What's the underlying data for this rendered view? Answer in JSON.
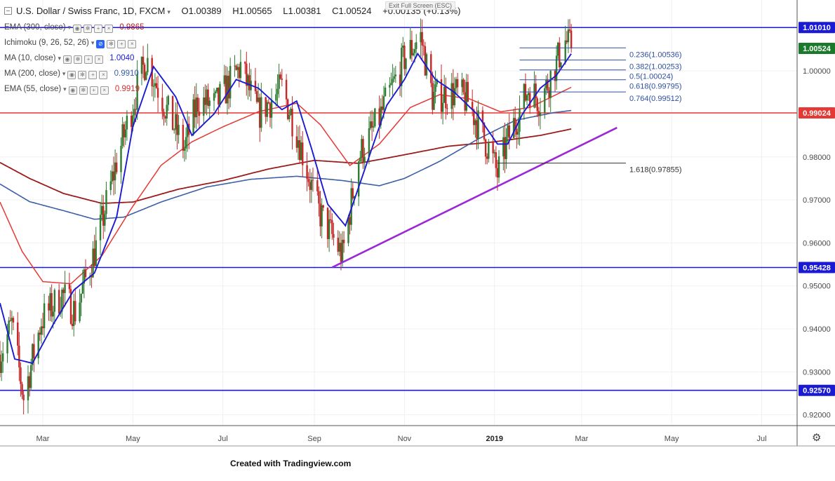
{
  "header": {
    "symbol": "U.S. Dollar / Swiss Franc, 1D, FXCM",
    "open": "O1.00389",
    "high": "H1.00565",
    "low": "L1.00381",
    "close": "C1.00524",
    "change": "+0.00135 (+0.13%)"
  },
  "tooltip": "Exit Full Screen (ESC)",
  "indicators": [
    {
      "name": "EMA (300, close)",
      "value": "0.9865",
      "color": "#b71c1c"
    },
    {
      "name": "Ichimoku (9, 26, 52, 26)",
      "value": "",
      "color": "#2962ff"
    },
    {
      "name": "MA (10, close)",
      "value": "1.0040",
      "color": "#1a1ad4"
    },
    {
      "name": "MA (200, close)",
      "value": "0.9910",
      "color": "#3c5fa6"
    },
    {
      "name": "EMA (55, close)",
      "value": "0.9919",
      "color": "#d32f2f"
    }
  ],
  "footer": "Created with Tradingview.com",
  "colors": {
    "up": "#2e7d32",
    "down": "#c62828",
    "ma10": "#1a1ad4",
    "ema55": "#e53935",
    "ma200": "#3c5fa6",
    "ema300": "#9b1b1b",
    "trendline": "#9c27d8",
    "blue_level": "#1a1ad4",
    "red_level": "#e53935",
    "fib": "#2e4fa3"
  },
  "chart_data": {
    "type": "candlestick",
    "symbol": "USDCHF",
    "timeframe": "1D",
    "ylim": [
      0.9175,
      1.0165
    ],
    "y_ticks": [
      "1.01000",
      "1.00000",
      "0.99000",
      "0.98000",
      "0.97000",
      "0.96000",
      "0.95000",
      "0.94000",
      "0.93000",
      "0.92000"
    ],
    "x_labels": [
      {
        "label": "Mar",
        "date": "2018-03-01"
      },
      {
        "label": "May",
        "date": "2018-05-01"
      },
      {
        "label": "Jul",
        "date": "2018-07-01"
      },
      {
        "label": "Sep",
        "date": "2018-09-01"
      },
      {
        "label": "Nov",
        "date": "2018-11-01"
      },
      {
        "label": "2019",
        "date": "2019-01-01"
      },
      {
        "label": "Mar",
        "date": "2019-03-01"
      },
      {
        "label": "May",
        "date": "2019-05-01"
      },
      {
        "label": "Jul",
        "date": "2019-07-01"
      }
    ],
    "x_range": [
      "2018-01-31",
      "2019-07-25"
    ],
    "price_keypoints": [
      [
        "2018-01-31",
        0.934
      ],
      [
        "2018-02-08",
        0.941
      ],
      [
        "2018-02-16",
        0.924
      ],
      [
        "2018-02-28",
        0.942
      ],
      [
        "2018-03-14",
        0.948
      ],
      [
        "2018-03-23",
        0.944
      ],
      [
        "2018-04-06",
        0.959
      ],
      [
        "2018-04-20",
        0.979
      ],
      [
        "2018-05-10",
        1.003
      ],
      [
        "2018-05-25",
        0.99
      ],
      [
        "2018-06-05",
        0.982
      ],
      [
        "2018-06-14",
        0.993
      ],
      [
        "2018-06-26",
        0.992
      ],
      [
        "2018-07-13",
        1.001
      ],
      [
        "2018-07-25",
        0.99
      ],
      [
        "2018-08-10",
        0.996
      ],
      [
        "2018-08-20",
        0.986
      ],
      [
        "2018-09-03",
        0.968
      ],
      [
        "2018-09-20",
        0.957
      ],
      [
        "2018-10-01",
        0.98
      ],
      [
        "2018-10-15",
        0.989
      ],
      [
        "2018-11-01",
        1.003
      ],
      [
        "2018-11-12",
        1.008
      ],
      [
        "2018-11-20",
        0.994
      ],
      [
        "2018-12-05",
        0.995
      ],
      [
        "2018-12-14",
        0.993
      ],
      [
        "2018-12-28",
        0.982
      ],
      [
        "2019-01-03",
        0.976
      ],
      [
        "2019-01-10",
        0.984
      ],
      [
        "2019-01-24",
        0.996
      ],
      [
        "2019-02-01",
        0.993
      ],
      [
        "2019-02-12",
        1.002
      ],
      [
        "2019-02-18",
        1.007
      ],
      [
        "2019-02-22",
        1.0052
      ]
    ],
    "ma10_keypoints": [
      [
        "2018-01-31",
        0.946
      ],
      [
        "2018-02-10",
        0.933
      ],
      [
        "2018-02-22",
        0.932
      ],
      [
        "2018-03-08",
        0.941
      ],
      [
        "2018-03-22",
        0.949
      ],
      [
        "2018-04-05",
        0.953
      ],
      [
        "2018-04-20",
        0.966
      ],
      [
        "2018-05-01",
        0.987
      ],
      [
        "2018-05-15",
        1.001
      ],
      [
        "2018-05-30",
        0.994
      ],
      [
        "2018-06-10",
        0.985
      ],
      [
        "2018-06-25",
        0.99
      ],
      [
        "2018-07-10",
        0.998
      ],
      [
        "2018-07-25",
        0.996
      ],
      [
        "2018-08-10",
        0.991
      ],
      [
        "2018-08-20",
        0.993
      ],
      [
        "2018-08-30",
        0.982
      ],
      [
        "2018-09-10",
        0.969
      ],
      [
        "2018-09-22",
        0.964
      ],
      [
        "2018-10-05",
        0.977
      ],
      [
        "2018-10-20",
        0.992
      ],
      [
        "2018-11-01",
        0.998
      ],
      [
        "2018-11-10",
        1.004
      ],
      [
        "2018-11-22",
        0.998
      ],
      [
        "2018-12-05",
        0.995
      ],
      [
        "2018-12-20",
        0.99
      ],
      [
        "2019-01-03",
        0.983
      ],
      [
        "2019-01-10",
        0.983
      ],
      [
        "2019-01-20",
        0.99
      ],
      [
        "2019-02-01",
        0.996
      ],
      [
        "2019-02-12",
        0.999
      ],
      [
        "2019-02-22",
        1.004
      ]
    ],
    "ema55_keypoints": [
      [
        "2018-01-31",
        0.9695
      ],
      [
        "2018-02-15",
        0.958
      ],
      [
        "2018-03-01",
        0.951
      ],
      [
        "2018-03-20",
        0.9505
      ],
      [
        "2018-04-10",
        0.957
      ],
      [
        "2018-04-30",
        0.968
      ],
      [
        "2018-05-20",
        0.978
      ],
      [
        "2018-06-10",
        0.9835
      ],
      [
        "2018-07-01",
        0.987
      ],
      [
        "2018-07-25",
        0.9905
      ],
      [
        "2018-08-20",
        0.9925
      ],
      [
        "2018-09-05",
        0.9875
      ],
      [
        "2018-09-25",
        0.978
      ],
      [
        "2018-10-15",
        0.983
      ],
      [
        "2018-11-05",
        0.9915
      ],
      [
        "2018-11-25",
        0.9945
      ],
      [
        "2018-12-15",
        0.9935
      ],
      [
        "2019-01-05",
        0.9905
      ],
      [
        "2019-01-25",
        0.9915
      ],
      [
        "2019-02-22",
        0.9962
      ]
    ],
    "ma200_keypoints": [
      [
        "2018-01-31",
        0.9737
      ],
      [
        "2018-02-20",
        0.9696
      ],
      [
        "2018-03-15",
        0.9675
      ],
      [
        "2018-04-05",
        0.9655
      ],
      [
        "2018-04-25",
        0.966
      ],
      [
        "2018-05-20",
        0.9695
      ],
      [
        "2018-06-20",
        0.973
      ],
      [
        "2018-07-20",
        0.9748
      ],
      [
        "2018-08-20",
        0.9755
      ],
      [
        "2018-09-20",
        0.9745
      ],
      [
        "2018-10-15",
        0.9733
      ],
      [
        "2018-11-01",
        0.975
      ],
      [
        "2018-11-25",
        0.979
      ],
      [
        "2018-12-20",
        0.984
      ],
      [
        "2019-01-15",
        0.9885
      ],
      [
        "2019-02-10",
        0.9903
      ],
      [
        "2019-02-22",
        0.9908
      ]
    ],
    "ema300_keypoints": [
      [
        "2018-01-31",
        0.9787
      ],
      [
        "2018-02-20",
        0.975
      ],
      [
        "2018-03-15",
        0.9715
      ],
      [
        "2018-04-10",
        0.9692
      ],
      [
        "2018-05-01",
        0.9695
      ],
      [
        "2018-06-01",
        0.9725
      ],
      [
        "2018-07-01",
        0.9745
      ],
      [
        "2018-08-01",
        0.9772
      ],
      [
        "2018-09-01",
        0.9792
      ],
      [
        "2018-10-01",
        0.9785
      ],
      [
        "2018-11-01",
        0.9805
      ],
      [
        "2018-12-01",
        0.9825
      ],
      [
        "2019-01-01",
        0.9835
      ],
      [
        "2019-02-01",
        0.985
      ],
      [
        "2019-02-22",
        0.9865
      ]
    ],
    "horizontal_levels": [
      {
        "label": "1.01010",
        "value": 1.0101,
        "color": "#1a1ad4"
      },
      {
        "label": "0.99024",
        "value": 0.99024,
        "color": "#e53935"
      },
      {
        "label": "0.95428",
        "value": 0.95428,
        "color": "#1a1ad4"
      },
      {
        "label": "0.92570",
        "value": 0.9257,
        "color": "#1a1ad4"
      }
    ],
    "last_price": {
      "label": "1.00524",
      "value": 1.00524,
      "color": "#1b7a2a"
    },
    "trendline": {
      "from": [
        "2018-09-13",
        0.9543
      ],
      "to": [
        "2019-03-25",
        0.9868
      ]
    },
    "fibonacci": [
      {
        "label": "0.236(1.00536)",
        "value": 1.00536
      },
      {
        "label": "0.382(1.00253)",
        "value": 1.00253
      },
      {
        "label": "0.5(1.00024)",
        "value": 1.00024
      },
      {
        "label": "0.618(0.99795)",
        "value": 0.99795
      },
      {
        "label": "0.764(0.99512)",
        "value": 0.99512
      },
      {
        "label": "1.618(0.97855)",
        "value": 0.97855
      }
    ],
    "fib_range": [
      "2019-01-03",
      "2019-03-31"
    ],
    "fib_range_wide_start": "2019-01-18"
  }
}
